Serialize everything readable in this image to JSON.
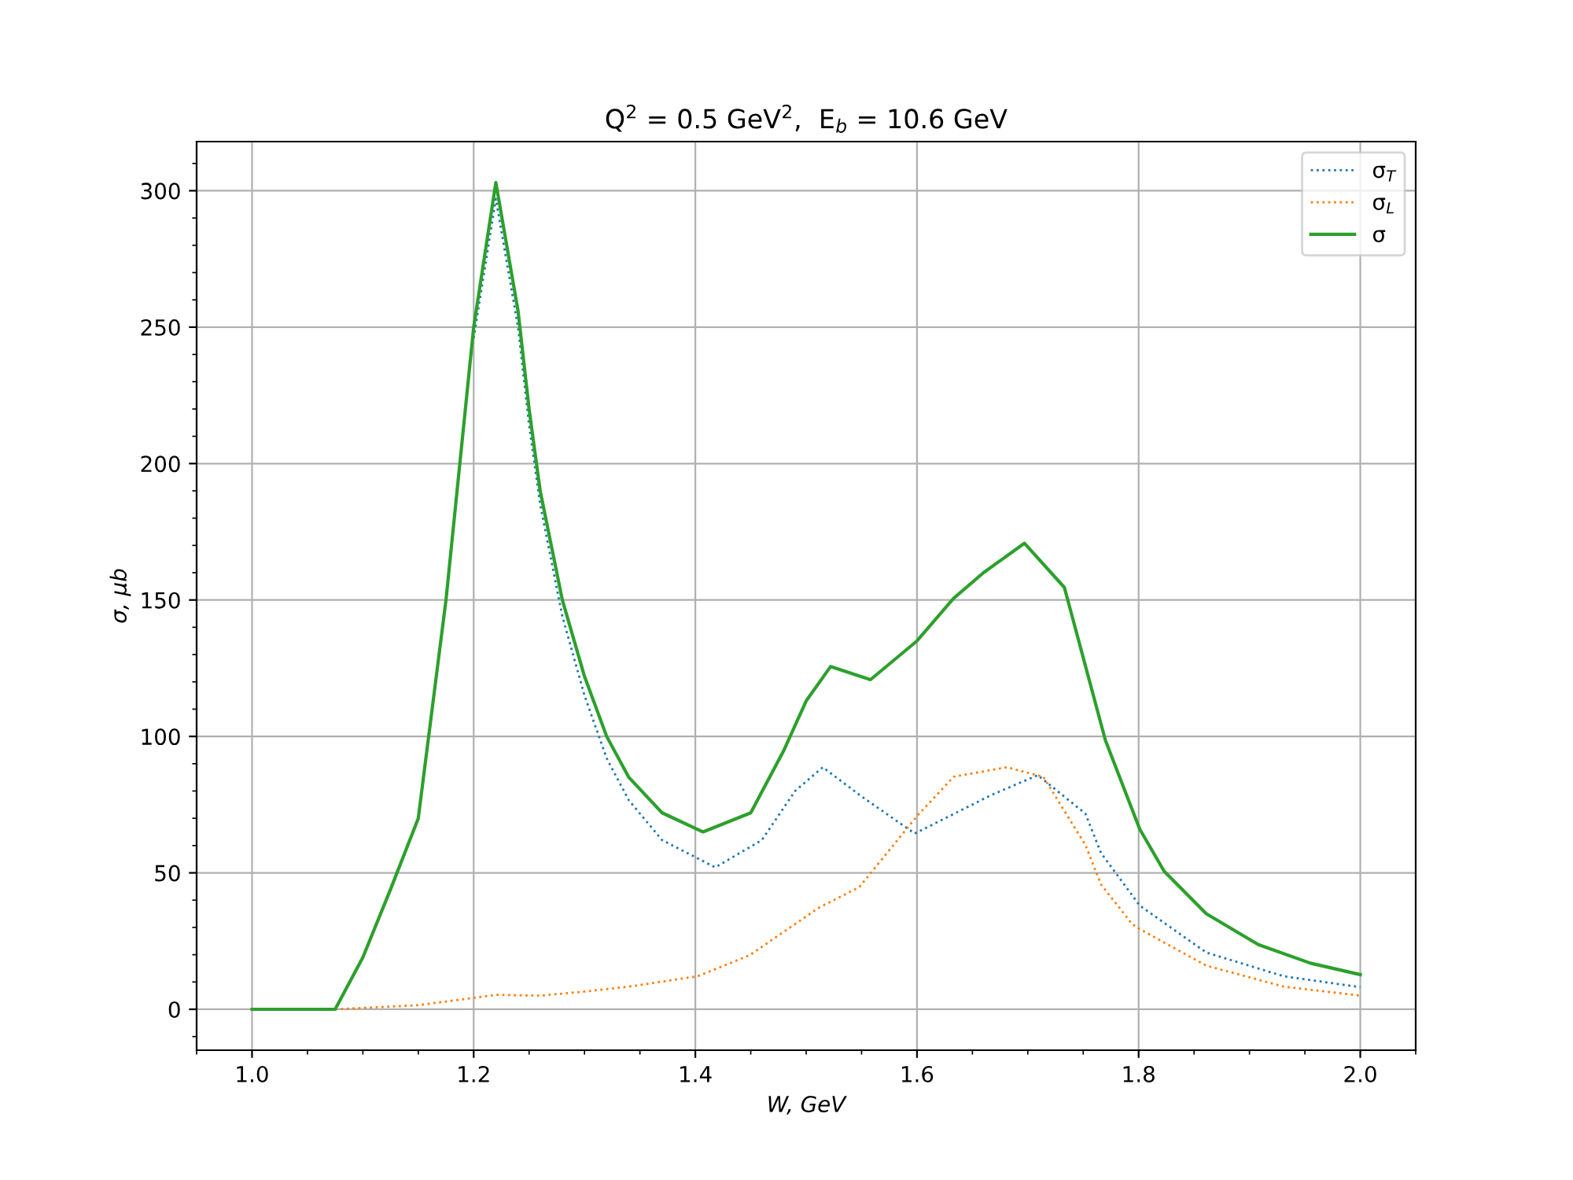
{
  "chart_data": {
    "type": "line",
    "title": "Q$^{2}$ = 0.5 GeV$^{2}$,  E$_{b}$ = 10.6 GeV",
    "xlabel": "W, GeV",
    "ylabel": "σ, μb",
    "xlim": [
      0.95,
      2.05
    ],
    "xticks": [
      {
        "value": 1.0,
        "label": "1.0"
      },
      {
        "value": 1.2,
        "label": "1.2"
      },
      {
        "value": 1.4,
        "label": "1.4"
      },
      {
        "value": 1.6,
        "label": "1.6"
      },
      {
        "value": 1.8,
        "label": "1.8"
      },
      {
        "value": 2.0,
        "label": "2.0"
      }
    ],
    "ylim": [
      -15,
      318
    ],
    "yticks": [
      0,
      50,
      100,
      150,
      200,
      250,
      300
    ],
    "grid": true,
    "legend": "top right",
    "marker": "none",
    "series": [
      {
        "name": "σ$_{T}$",
        "color": "#1f77b4",
        "line_style": "dotted",
        "x": [
          1.2,
          1.22,
          1.24,
          1.25,
          1.26,
          1.28,
          1.3,
          1.32,
          1.34,
          1.37,
          1.418,
          1.46,
          1.49,
          1.515,
          1.55,
          1.598,
          1.667,
          1.709,
          1.752,
          1.766,
          1.801,
          1.861,
          1.931,
          2.0
        ],
        "values": [
          246,
          297,
          250,
          214,
          185,
          144,
          115,
          92,
          76.6,
          62,
          52,
          62,
          80,
          88.7,
          78,
          64.4,
          78.5,
          85.8,
          71.7,
          57.3,
          38,
          20.8,
          12.1,
          8.1
        ]
      },
      {
        "name": "σ$_{L}$",
        "color": "#ff7f0e",
        "line_style": "dotted",
        "x": [
          1.075,
          1.1,
          1.15,
          1.2,
          1.22,
          1.26,
          1.3,
          1.34,
          1.402,
          1.449,
          1.511,
          1.548,
          1.6,
          1.633,
          1.681,
          1.714,
          1.752,
          1.766,
          1.794,
          1.801,
          1.861,
          1.931,
          2.0
        ],
        "values": [
          0,
          0.5,
          1.5,
          4.2,
          5.3,
          5,
          6.5,
          8.3,
          12.1,
          19.8,
          37.1,
          44.8,
          70.8,
          85.2,
          88.7,
          85.2,
          60.2,
          45.8,
          31.3,
          29.4,
          16,
          8.3,
          5
        ]
      },
      {
        "name": "σ",
        "color": "#2ca02c",
        "line_style": "solid",
        "x": [
          1.0,
          1.05,
          1.075,
          1.1,
          1.125,
          1.15,
          1.175,
          1.2,
          1.22,
          1.24,
          1.25,
          1.26,
          1.28,
          1.3,
          1.32,
          1.34,
          1.37,
          1.407,
          1.45,
          1.48,
          1.5,
          1.522,
          1.558,
          1.6,
          1.633,
          1.66,
          1.697,
          1.733,
          1.77,
          1.801,
          1.823,
          1.861,
          1.908,
          1.955,
          2.0
        ],
        "values": [
          0,
          0,
          0,
          19,
          44,
          70,
          150,
          250,
          303,
          256,
          220,
          190,
          150,
          122,
          100,
          85,
          72,
          65,
          72,
          95,
          113,
          125.6,
          120.8,
          135,
          150.6,
          160,
          170.8,
          154.6,
          98.6,
          66,
          50.6,
          35,
          23.7,
          16.9,
          12.7
        ]
      }
    ]
  }
}
